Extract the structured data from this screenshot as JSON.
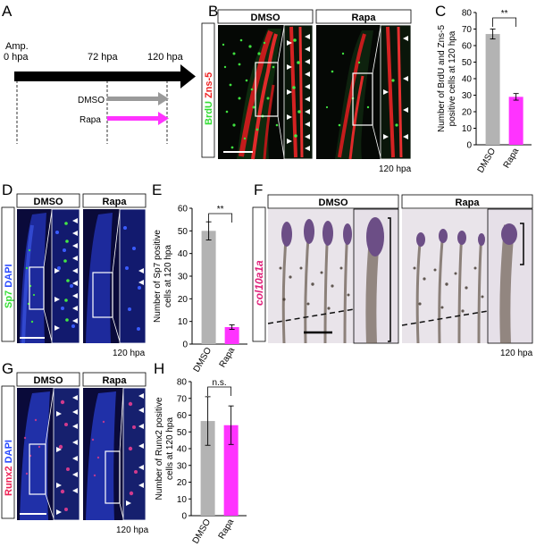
{
  "panels": {
    "A": {
      "letter": "A",
      "amp": "Amp.",
      "t0": "0 hpa",
      "t72": "72 hpa",
      "t120": "120 hpa",
      "dmso": "DMSO",
      "rapa": "Rapa",
      "colors": {
        "dmso": "#9a9a9a",
        "rapa": "#ff33ff"
      }
    },
    "B": {
      "letter": "B",
      "dmso": "DMSO",
      "rapa": "Rapa",
      "stain_green": "BrdU",
      "stain_red": "Zns-5",
      "time": "120 hpa"
    },
    "D": {
      "letter": "D",
      "dmso": "DMSO",
      "rapa": "Rapa",
      "stain_green": "Sp7",
      "stain_blue": "DAPI",
      "time": "120 hpa"
    },
    "F": {
      "letter": "F",
      "dmso": "DMSO",
      "rapa": "Rapa",
      "gene": "col10a1a",
      "time": "120 hpa"
    },
    "G": {
      "letter": "G",
      "dmso": "DMSO",
      "rapa": "Rapa",
      "stain_red": "Runx2",
      "stain_blue": "DAPI",
      "time": "120 hpa"
    }
  },
  "chart_data": [
    {
      "id": "C",
      "letter": "C",
      "type": "bar",
      "categories": [
        "DMSO",
        "Rapa"
      ],
      "values": [
        67,
        29
      ],
      "errors": [
        3,
        2
      ],
      "colors": [
        "#b3b3b3",
        "#ff33ff"
      ],
      "ylabel_line1": "Number of BrdU and Zns-5",
      "ylabel_line2": "positive cells at 120 hpa",
      "ylim": [
        0,
        80
      ],
      "yticks": [
        0,
        10,
        20,
        30,
        40,
        50,
        60,
        70,
        80
      ],
      "significance": "**"
    },
    {
      "id": "E",
      "letter": "E",
      "type": "bar",
      "categories": [
        "DMSO",
        "Rapa"
      ],
      "values": [
        50,
        7.5
      ],
      "errors": [
        4,
        1
      ],
      "colors": [
        "#b3b3b3",
        "#ff33ff"
      ],
      "ylabel_line1": "Number of Sp7 positive",
      "ylabel_line2": "cells at 120 hpa",
      "ylim": [
        0,
        60
      ],
      "yticks": [
        0,
        10,
        20,
        30,
        40,
        50,
        60
      ],
      "significance": "**"
    },
    {
      "id": "H",
      "letter": "H",
      "type": "bar",
      "categories": [
        "DMSO",
        "Rapa"
      ],
      "values": [
        56.5,
        54
      ],
      "errors": [
        14.5,
        11.5
      ],
      "colors": [
        "#b3b3b3",
        "#ff33ff"
      ],
      "ylabel_line1": "Number of Runx2 positive",
      "ylabel_line2": "cells at 120 hpa",
      "ylim": [
        0,
        80
      ],
      "yticks": [
        0,
        10,
        20,
        30,
        40,
        50,
        60,
        70,
        80
      ],
      "significance": "n.s."
    }
  ]
}
